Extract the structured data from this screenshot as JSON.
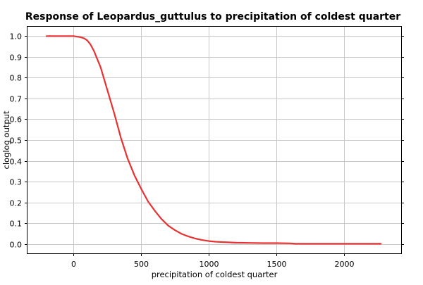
{
  "chart_data": {
    "type": "line",
    "title": "Response of Leopardus_guttulus to precipitation of coldest quarter",
    "xlabel": "precipitation of coldest quarter",
    "ylabel": "cloglog output",
    "xlim": [
      -340,
      2420
    ],
    "ylim": [
      -0.045,
      1.045
    ],
    "xticks": [
      0,
      500,
      1000,
      1500,
      2000
    ],
    "yticks": [
      0.0,
      0.1,
      0.2,
      0.3,
      0.4,
      0.5,
      0.6,
      0.7,
      0.8,
      0.9,
      1.0
    ],
    "xtick_labels": [
      "0",
      "500",
      "1000",
      "1500",
      "2000"
    ],
    "ytick_labels": [
      "0.0",
      "0.1",
      "0.2",
      "0.3",
      "0.4",
      "0.5",
      "0.6",
      "0.7",
      "0.8",
      "0.9",
      "1.0"
    ],
    "grid": true,
    "legend": "none",
    "series": [
      {
        "color": "#e83232",
        "x": [
          -200,
          -100,
          0,
          50,
          75,
          100,
          125,
          150,
          175,
          200,
          250,
          300,
          350,
          400,
          450,
          500,
          550,
          600,
          650,
          700,
          750,
          800,
          850,
          900,
          950,
          1000,
          1050,
          1100,
          1200,
          1300,
          1400,
          1500,
          1600,
          1640,
          1700,
          1800,
          1900,
          2000,
          2100,
          2200,
          2270
        ],
        "y": [
          1.0,
          1.0,
          1.0,
          0.995,
          0.99,
          0.98,
          0.96,
          0.93,
          0.89,
          0.85,
          0.74,
          0.63,
          0.51,
          0.41,
          0.33,
          0.265,
          0.205,
          0.16,
          0.12,
          0.088,
          0.066,
          0.048,
          0.036,
          0.026,
          0.019,
          0.014,
          0.011,
          0.009,
          0.006,
          0.005,
          0.004,
          0.004,
          0.003,
          0.001,
          0.001,
          0.001,
          0.001,
          0.001,
          0.001,
          0.001,
          0.001
        ]
      }
    ]
  }
}
